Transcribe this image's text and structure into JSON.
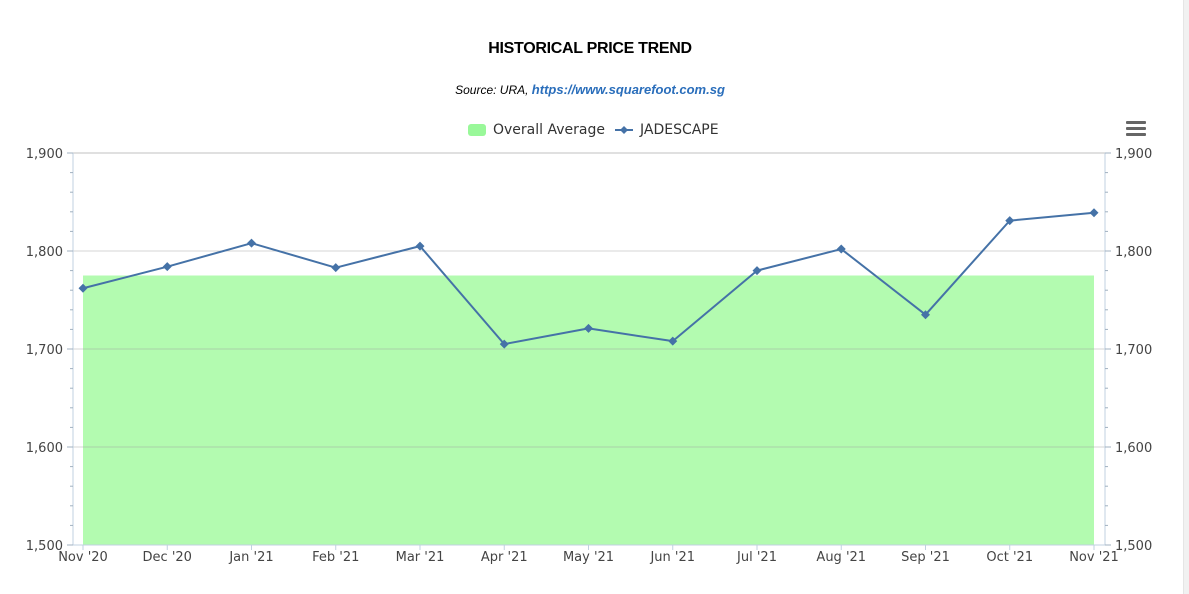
{
  "chart_data": {
    "type": "line",
    "title": "HISTORICAL PRICE TREND",
    "subtitle_prefix": "Source: URA, ",
    "subtitle_link": "https://www.squarefoot.com.sg",
    "categories": [
      "Nov '20",
      "Dec '20",
      "Jan '21",
      "Feb '21",
      "Mar '21",
      "Apr '21",
      "May '21",
      "Jun '21",
      "Jul '21",
      "Aug '21",
      "Sep '21",
      "Oct '21",
      "Nov '21"
    ],
    "series": [
      {
        "name": "Overall Average",
        "type": "area",
        "color": "#99f899",
        "value": 1775
      },
      {
        "name": "JADESCAPE",
        "type": "line",
        "color": "#4572a7",
        "values": [
          1762,
          1784,
          1808,
          1783,
          1805,
          1705,
          1721,
          1708,
          1780,
          1802,
          1735,
          1831,
          1839
        ]
      }
    ],
    "ylim": [
      1500,
      1900
    ],
    "yticks": [
      "1,500",
      "1,600",
      "1,700",
      "1,800",
      "1,900"
    ],
    "grid": true,
    "legend_position": "top-center",
    "dual_y_axis": true
  },
  "toolbar": {
    "menu_icon": "hamburger-menu-icon"
  }
}
